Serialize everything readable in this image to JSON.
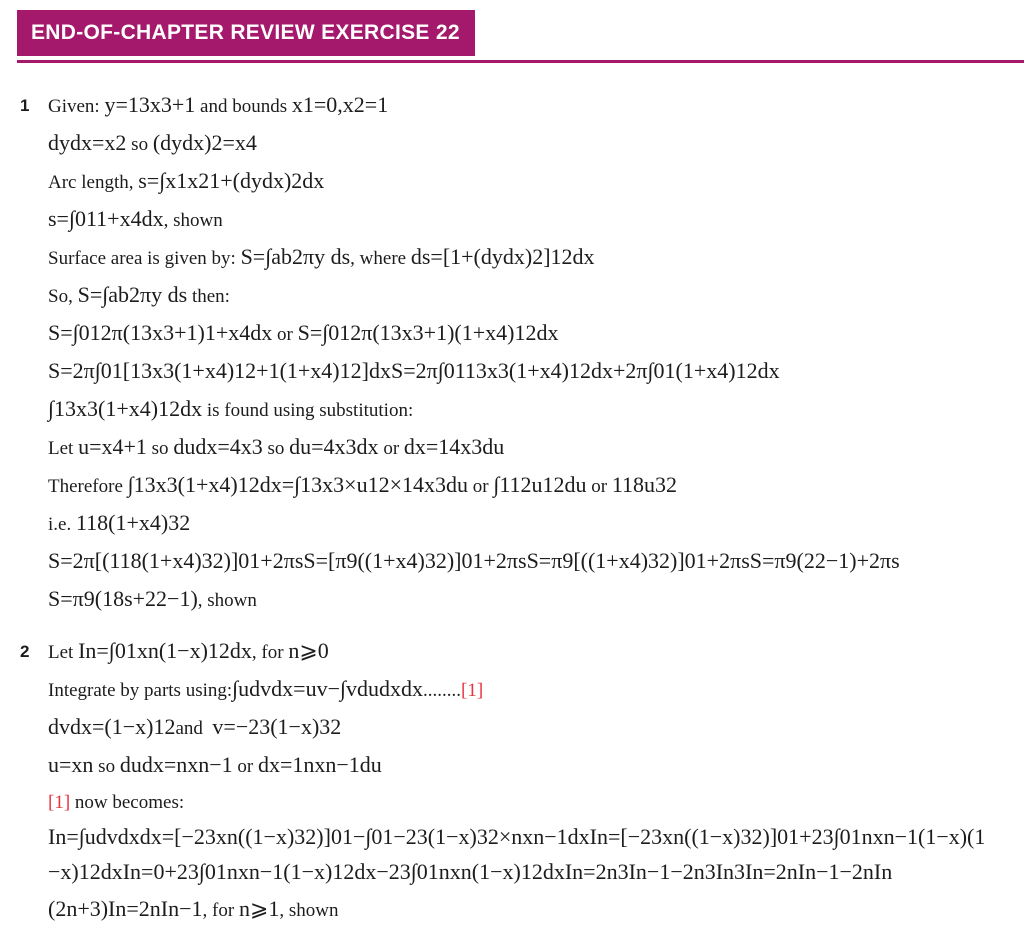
{
  "header": {
    "title": "END-OF-CHAPTER REVIEW EXERCISE 22"
  },
  "colors": {
    "accent": "#a5196d",
    "ref_red": "#e8333e",
    "text": "#1c1c1c",
    "banner_text": "#ffffff"
  },
  "problems": [
    {
      "number": "1",
      "lines": [
        {
          "segments": [
            {
              "style": "t",
              "text": "Given: "
            },
            {
              "style": "m",
              "text": "y=13x3+1"
            },
            {
              "style": "t",
              "text": " and bounds "
            },
            {
              "style": "m",
              "text": "x1=0,x2=1"
            }
          ]
        },
        {
          "segments": [
            {
              "style": "m",
              "text": "dydx=x2"
            },
            {
              "style": "t",
              "text": " so "
            },
            {
              "style": "m",
              "text": "(dydx)2=x4"
            }
          ]
        },
        {
          "segments": [
            {
              "style": "t",
              "text": "Arc length, "
            },
            {
              "style": "m",
              "text": "s=∫x1x21+(dydx)2dx"
            }
          ]
        },
        {
          "segments": [
            {
              "style": "m",
              "text": "s=∫011+x4dx"
            },
            {
              "style": "t",
              "text": ", shown"
            }
          ]
        },
        {
          "segments": [
            {
              "style": "t",
              "text": "Surface area is given by: "
            },
            {
              "style": "m",
              "text": "S=∫ab2πy ds"
            },
            {
              "style": "t",
              "text": ", where "
            },
            {
              "style": "m",
              "text": "ds=[1+(dydx)2]12dx"
            }
          ]
        },
        {
          "segments": [
            {
              "style": "t",
              "text": "So, "
            },
            {
              "style": "m",
              "text": "S=∫ab2πy ds"
            },
            {
              "style": "t",
              "text": " then:"
            }
          ]
        },
        {
          "segments": [
            {
              "style": "m",
              "text": "S=∫012π(13x3+1)1+x4dx"
            },
            {
              "style": "t",
              "text": " or "
            },
            {
              "style": "m",
              "text": "S=∫012π(13x3+1)(1+x4)12dx"
            }
          ]
        },
        {
          "segments": [
            {
              "style": "m",
              "text": "S=2π∫01[13x3(1+x4)12+1(1+x4)12]dxS=2π∫0113x3(1+x4)12dx+2π∫01(1+x4)12dx"
            }
          ]
        },
        {
          "segments": [
            {
              "style": "m",
              "text": "∫13x3(1+x4)12dx"
            },
            {
              "style": "t",
              "text": " is found using substitution:"
            }
          ]
        },
        {
          "segments": [
            {
              "style": "t",
              "text": "Let "
            },
            {
              "style": "m",
              "text": "u=x4+1"
            },
            {
              "style": "t",
              "text": " so "
            },
            {
              "style": "m",
              "text": "dudx=4x3"
            },
            {
              "style": "t",
              "text": " so "
            },
            {
              "style": "m",
              "text": "du=4x3dx"
            },
            {
              "style": "t",
              "text": " or "
            },
            {
              "style": "m",
              "text": "dx=14x3du"
            }
          ]
        },
        {
          "segments": [
            {
              "style": "t",
              "text": "Therefore "
            },
            {
              "style": "m",
              "text": "∫13x3(1+x4)12dx=∫13x3×u12×14x3du"
            },
            {
              "style": "t",
              "text": " or "
            },
            {
              "style": "m",
              "text": "∫112u12du"
            },
            {
              "style": "t",
              "text": " or "
            },
            {
              "style": "m",
              "text": "118u32"
            }
          ]
        },
        {
          "segments": [
            {
              "style": "t",
              "text": "i.e. "
            },
            {
              "style": "m",
              "text": "118(1+x4)32"
            }
          ]
        },
        {
          "segments": [
            {
              "style": "m",
              "text": "S=2π[(118(1+x4)32)]01+2πsS=[π9((1+x4)32)]01+2πsS=π9[((1+x4)32)]01+2πsS=π9(22−1)+2πs"
            }
          ]
        },
        {
          "segments": [
            {
              "style": "m",
              "text": "S=π9(18s+22−1)"
            },
            {
              "style": "t",
              "text": ", shown"
            }
          ]
        }
      ]
    },
    {
      "number": "2",
      "lines": [
        {
          "segments": [
            {
              "style": "t",
              "text": "Let "
            },
            {
              "style": "m",
              "text": "In=∫01xn(1−x)12dx"
            },
            {
              "style": "t",
              "text": ", for "
            },
            {
              "style": "m",
              "text": "n⩾0"
            }
          ]
        },
        {
          "segments": [
            {
              "style": "t",
              "text": "Integrate by parts using:"
            },
            {
              "style": "m",
              "text": "∫udvdx=uv−∫vdudxdx"
            },
            {
              "style": "t",
              "text": "........"
            },
            {
              "style": "r",
              "text": "[1]"
            }
          ]
        },
        {
          "segments": [
            {
              "style": "m",
              "text": "dvdx=(1−x)12"
            },
            {
              "style": "t",
              "text": "and  "
            },
            {
              "style": "m",
              "text": "v=−23(1−x)32"
            }
          ]
        },
        {
          "segments": [
            {
              "style": "m",
              "text": "u=xn"
            },
            {
              "style": "t",
              "text": " so "
            },
            {
              "style": "m",
              "text": "dudx=nxn−1"
            },
            {
              "style": "t",
              "text": " or "
            },
            {
              "style": "m",
              "text": "dx=1nxn−1du"
            }
          ]
        },
        {
          "segments": [
            {
              "style": "r",
              "text": "[1]"
            },
            {
              "style": "t",
              "text": " now becomes:"
            }
          ]
        },
        {
          "wrap": true,
          "segments": [
            {
              "style": "m",
              "text": "In=∫udvdxdx=[−23xn((1−x)32)]01−∫01−23(1−x)32×nxn−1dxIn=[−23xn((1−x)32)]01+23∫01nxn−1(1−x)(1−x)12dxIn=0+23∫01nxn−1(1−x)12dx−23∫01nxn(1−x)12dxIn=2n3In−1−2n3In3In=2nIn−1−2nIn"
            }
          ]
        },
        {
          "segments": [
            {
              "style": "m",
              "text": "(2n+3)In=2nIn−1"
            },
            {
              "style": "t",
              "text": ", for "
            },
            {
              "style": "m",
              "text": "n⩾1"
            },
            {
              "style": "t",
              "text": ", shown"
            }
          ]
        }
      ]
    }
  ]
}
